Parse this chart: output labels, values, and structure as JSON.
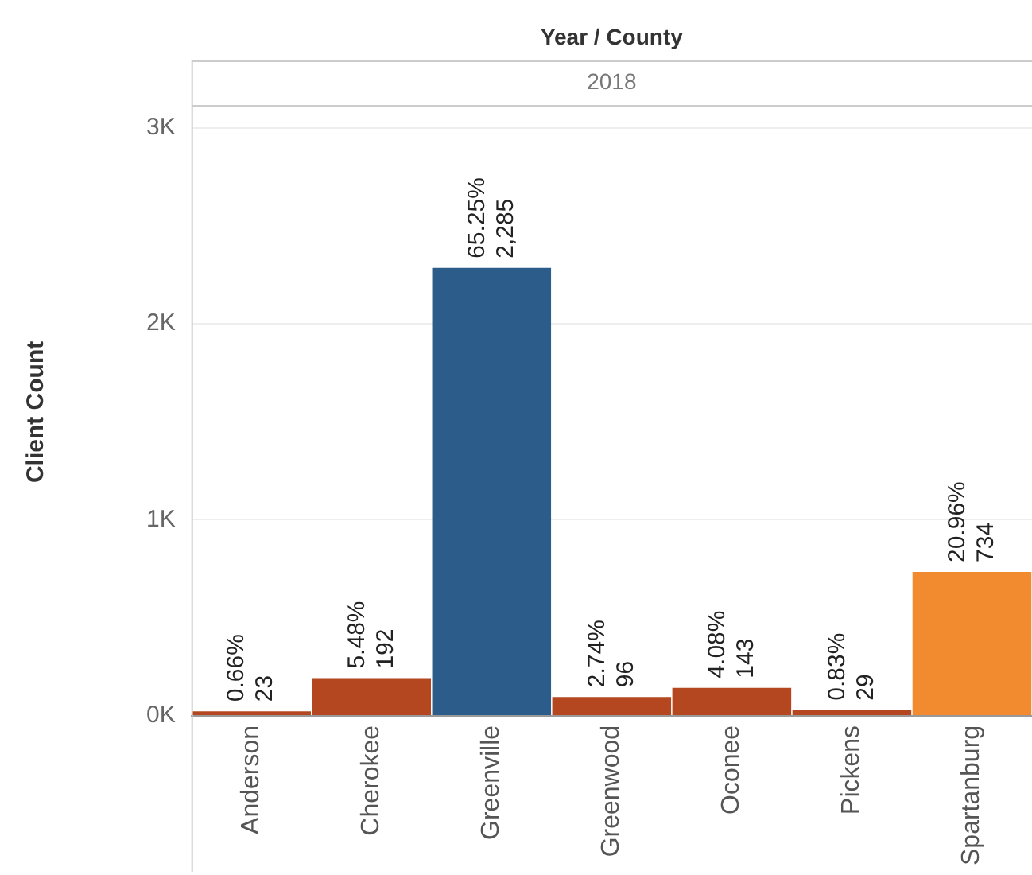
{
  "chart_data": {
    "type": "bar",
    "title": "Year / County",
    "subtitle": "2018",
    "ylabel": "Client Count",
    "categories": [
      "Anderson",
      "Cherokee",
      "Greenville",
      "Greenwood",
      "Oconee",
      "Pickens",
      "Spartanburg"
    ],
    "values": [
      23,
      192,
      2285,
      96,
      143,
      29,
      734
    ],
    "colors": [
      "#b4471f",
      "#b4471f",
      "#2c5c8a",
      "#b4471f",
      "#b4471f",
      "#b4471f",
      "#f28a30"
    ],
    "value_labels": [
      "23",
      "192",
      "2,285",
      "96",
      "143",
      "29",
      "734"
    ],
    "annotations": [
      {
        "text": "0.66%",
        "x": "Anderson",
        "y": 23
      },
      {
        "text": "5.48%",
        "x": "Cherokee",
        "y": 192
      },
      {
        "text": "65.25%",
        "x": "Greenville",
        "y": 2285
      },
      {
        "text": "2.74%",
        "x": "Greenwood",
        "y": 96
      },
      {
        "text": "4.08%",
        "x": "Oconee",
        "y": 143
      },
      {
        "text": "0.83%",
        "x": "Pickens",
        "y": 29
      },
      {
        "text": "20.96%",
        "x": "Spartanburg",
        "y": 734
      }
    ],
    "ylim": [
      0,
      3100
    ],
    "yticks": [
      {
        "value": 0,
        "label": "0K"
      },
      {
        "value": 1000,
        "label": "1K"
      },
      {
        "value": 2000,
        "label": "2K"
      },
      {
        "value": 3000,
        "label": "3K"
      }
    ],
    "grid": "y",
    "legend": false
  }
}
